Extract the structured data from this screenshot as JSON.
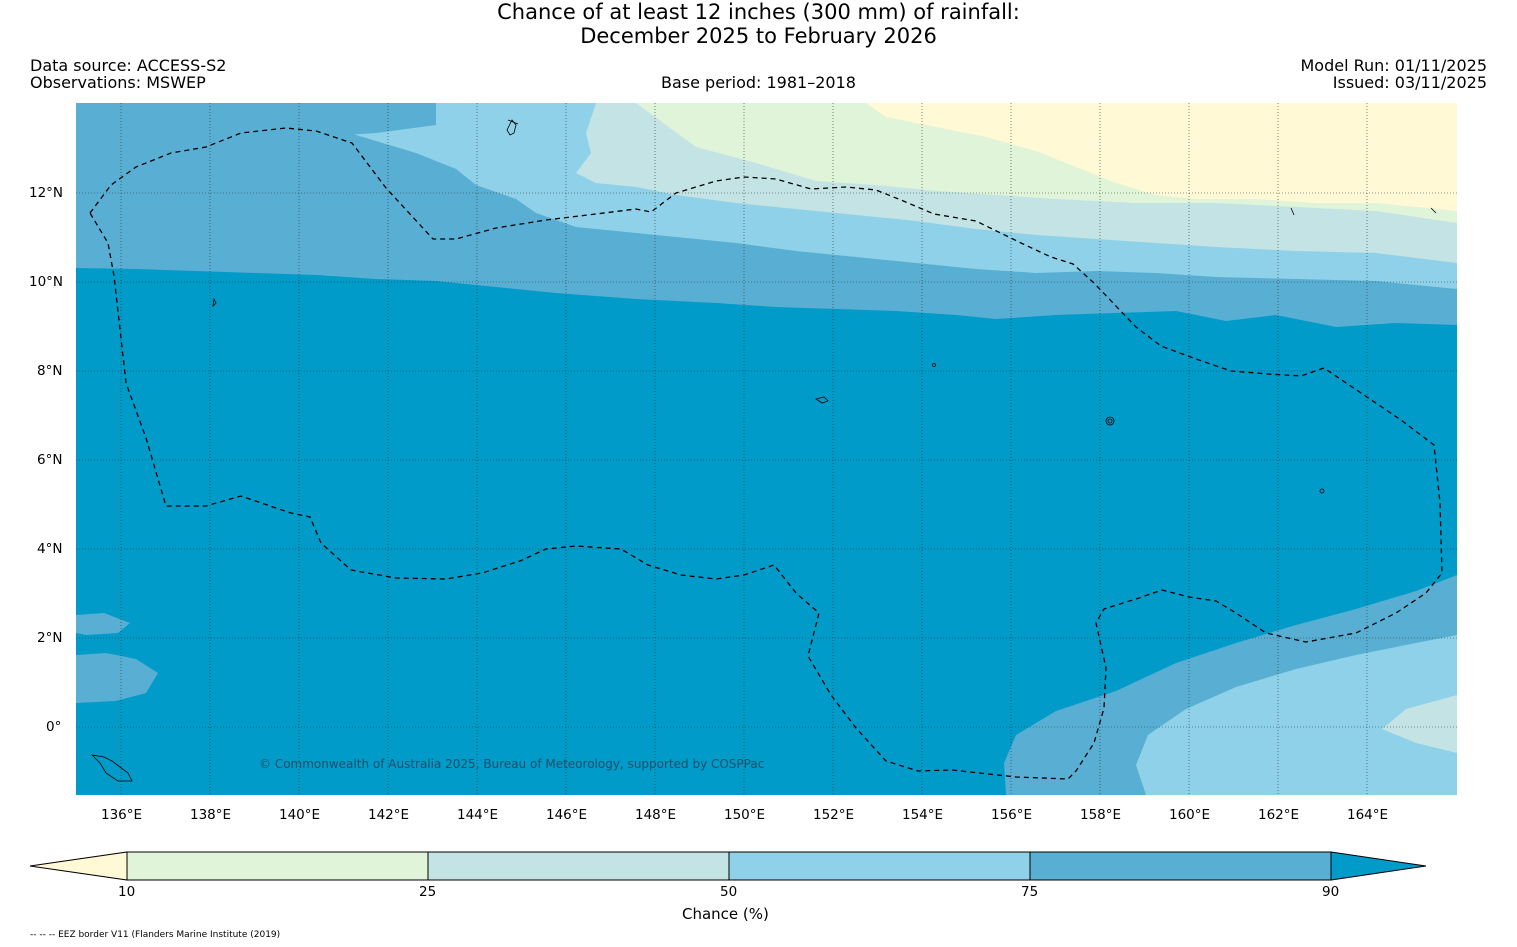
{
  "header": {
    "title_line1": "Chance of at least 12 inches (300  mm) of rainfall:",
    "title_line2": "December 2025 to February 2026",
    "data_source": "Data source: ACCESS-S2",
    "observations": "Observations: MSWEP",
    "base_period": "Base period: 1981–2018",
    "model_run": "Model Run: 01/11/2025",
    "issued": "Issued: 03/11/2025"
  },
  "map": {
    "lat_labels": [
      "12°N",
      "10°N",
      "8°N",
      "6°N",
      "4°N",
      "2°N",
      "0°"
    ],
    "lon_labels": [
      "136°E",
      "138°E",
      "140°E",
      "142°E",
      "144°E",
      "146°E",
      "148°E",
      "150°E",
      "152°E",
      "154°E",
      "156°E",
      "158°E",
      "160°E",
      "162°E",
      "164°E"
    ],
    "credit": "© Commonwealth of Australia 2025, Bureau of Meteorology, supported by COSPPac"
  },
  "colorbar": {
    "ticks": [
      "10",
      "25",
      "50",
      "75",
      "90"
    ],
    "label": "Chance (%)",
    "colors": [
      "#fff9d5",
      "#dff4d9",
      "#c3e3e5",
      "#8fd1e8",
      "#58afd3",
      "#009bc8"
    ]
  },
  "footer": {
    "legend_note": "-- -- -- EEZ border V11 (Flanders Marine Institute (2019)"
  }
}
